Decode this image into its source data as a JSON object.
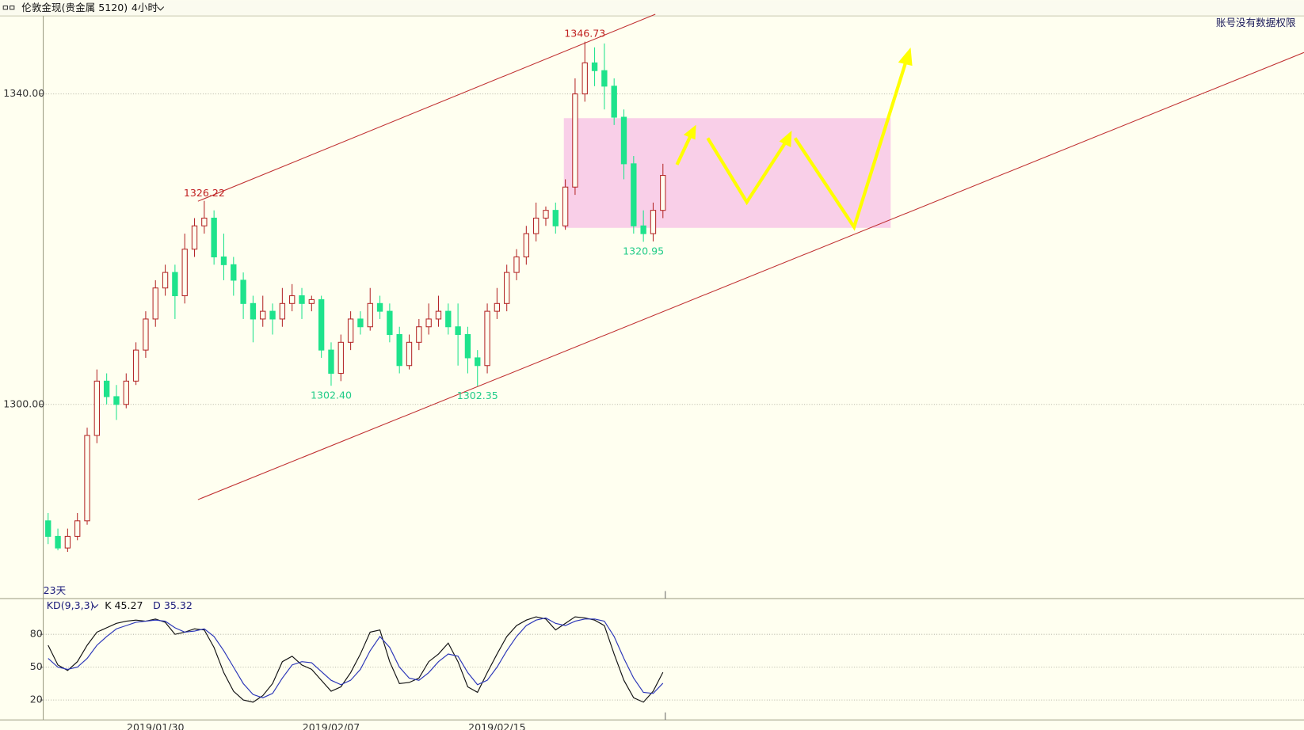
{
  "title_bar": {
    "symbol": "伦敦金现(贵金属 5120)",
    "period": "4小时"
  },
  "notice": "账号没有数据权限",
  "chart_data": [
    {
      "type": "candlestick",
      "categories": [
        null,
        null,
        null,
        null,
        null,
        null,
        null,
        null,
        null,
        null,
        null,
        "2019/01/30",
        null,
        null,
        null,
        null,
        null,
        null,
        null,
        null,
        null,
        null,
        null,
        null,
        null,
        null,
        null,
        null,
        null,
        "2019/02/07",
        null,
        null,
        null,
        null,
        null,
        null,
        null,
        null,
        null,
        null,
        null,
        null,
        null,
        null,
        null,
        null,
        "2019/02/15",
        null,
        null,
        null,
        null,
        null,
        null,
        null,
        null,
        null,
        null,
        null,
        null,
        null,
        null,
        null,
        null,
        null
      ],
      "open": [
        1285,
        1283,
        1281.5,
        1283,
        1285,
        1296,
        1303,
        1301,
        1300,
        1303,
        1307,
        1311,
        1315,
        1317,
        1314,
        1320,
        1323,
        1324,
        1319,
        1318,
        1316,
        1313,
        1311,
        1312,
        1311,
        1313,
        1314,
        1313,
        1313.5,
        1307,
        1304,
        1308,
        1311,
        1310,
        1313,
        1312,
        1309,
        1305,
        1308,
        1310,
        1311,
        1312,
        1310,
        1309,
        1306,
        1305,
        1312,
        1313,
        1317,
        1319,
        1322,
        1324,
        1325,
        1323,
        1328,
        1340,
        1344,
        1343,
        1341,
        1337,
        1331,
        1323,
        1322,
        1325
      ],
      "high": [
        1286,
        1284,
        1284,
        1286,
        1297,
        1304.5,
        1304,
        1302.5,
        1304,
        1308,
        1312,
        1316,
        1318,
        1318,
        1322,
        1324,
        1326.22,
        1325,
        1322,
        1319,
        1317,
        1314,
        1314,
        1313,
        1315,
        1315.5,
        1315,
        1314,
        1314,
        1308,
        1309,
        1312,
        1312,
        1315,
        1314,
        1313,
        1310,
        1309,
        1311,
        1313,
        1314,
        1313,
        1313,
        1310,
        1307,
        1313,
        1315,
        1318,
        1320,
        1323,
        1326,
        1325.5,
        1326,
        1329,
        1342,
        1346.73,
        1346,
        1346.5,
        1342,
        1338,
        1332,
        1325,
        1326,
        1331
      ],
      "low": [
        1282,
        1281.2,
        1281,
        1282.5,
        1284.5,
        1295,
        1300,
        1298,
        1299.5,
        1302.5,
        1306,
        1310,
        1314,
        1311,
        1313,
        1319,
        1322,
        1318,
        1316,
        1314,
        1311,
        1308,
        1310,
        1309,
        1310,
        1312,
        1311,
        1312,
        1306,
        1302.4,
        1303,
        1307,
        1309,
        1309.5,
        1311,
        1308,
        1304,
        1304.5,
        1307,
        1309,
        1310,
        1309,
        1305,
        1304,
        1302.35,
        1304,
        1311,
        1312,
        1316,
        1318,
        1321,
        1323,
        1322,
        1322.5,
        1327,
        1339,
        1341,
        1338,
        1336,
        1329,
        1322,
        1320.95,
        1321,
        1324
      ],
      "close": [
        1283,
        1281.5,
        1283,
        1285,
        1296,
        1303,
        1301,
        1300,
        1303,
        1307,
        1311,
        1315,
        1317,
        1314,
        1320,
        1323,
        1324,
        1319,
        1318,
        1316,
        1313,
        1311,
        1312,
        1311,
        1313,
        1314,
        1313,
        1313.5,
        1307,
        1304,
        1308,
        1311,
        1310,
        1313,
        1312,
        1309,
        1305,
        1308,
        1310,
        1311,
        1312,
        1310,
        1309,
        1306,
        1305,
        1312,
        1313,
        1317,
        1319,
        1322,
        1324,
        1325,
        1323,
        1328,
        1340,
        1344,
        1343,
        1341,
        1337,
        1331,
        1323,
        1322,
        1325,
        1329.5
      ],
      "ylim": [
        1275.2,
        1350.05
      ],
      "yticks": [
        {
          "value": 1300,
          "label": "1300.00"
        },
        {
          "value": 1340,
          "label": "1340.00"
        }
      ],
      "grid": true,
      "up_color": "#b42828",
      "down_color": "#1ee38c",
      "annotations": [
        {
          "value": 1326.22,
          "label": "1326.22"
        },
        {
          "value": 1346.73,
          "label": "1346.73"
        },
        {
          "value": 1302.4,
          "label": "1302.40"
        },
        {
          "value": 1302.35,
          "label": "1302.35"
        },
        {
          "value": 1320.95,
          "label": "1320.95"
        }
      ],
      "span_label": "23天"
    },
    {
      "type": "line",
      "title": "KD(9,3,3)",
      "series": [
        {
          "name": "K 45.27",
          "color": "#111111",
          "values": [
            70,
            52,
            47,
            55,
            70,
            82,
            86,
            90,
            92,
            93,
            92,
            94,
            91,
            80,
            82,
            85,
            84,
            68,
            45,
            28,
            20,
            18,
            24,
            35,
            55,
            60,
            52,
            48,
            38,
            28,
            32,
            45,
            62,
            82,
            84,
            55,
            35,
            36,
            40,
            55,
            62,
            72,
            55,
            32,
            27,
            45,
            62,
            78,
            88,
            93,
            96,
            94,
            84,
            90,
            96,
            95,
            93,
            88,
            62,
            38,
            22,
            18,
            28,
            45.27
          ]
        },
        {
          "name": "D 35.32",
          "color": "#2a35b8",
          "values": [
            58,
            50,
            48,
            50,
            58,
            70,
            78,
            85,
            88,
            91,
            92,
            93,
            92,
            86,
            82,
            83,
            85,
            78,
            65,
            50,
            35,
            25,
            22,
            26,
            40,
            52,
            55,
            54,
            46,
            38,
            34,
            38,
            48,
            65,
            78,
            68,
            50,
            40,
            38,
            45,
            55,
            62,
            60,
            45,
            34,
            38,
            50,
            65,
            78,
            88,
            93,
            95,
            90,
            88,
            92,
            94,
            94,
            92,
            78,
            58,
            40,
            27,
            26,
            35.32
          ]
        }
      ],
      "ylim": [
        1.8,
        112.7
      ],
      "yticks": [
        20,
        50,
        80
      ]
    }
  ]
}
